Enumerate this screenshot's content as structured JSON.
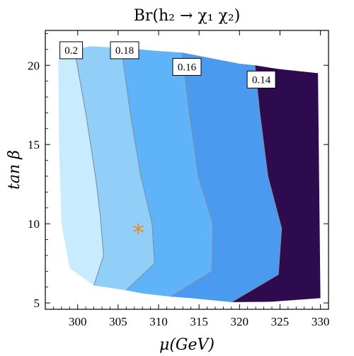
{
  "chart_data": {
    "type": "contour",
    "title": "Br(h₂ → χ₁ χ₂)",
    "xlabel": "μ(GeV)",
    "ylabel": "tan β",
    "xlim": [
      296,
      331
    ],
    "ylim": [
      4.6,
      22.2
    ],
    "x_ticks": [
      300,
      305,
      310,
      315,
      320,
      325,
      330
    ],
    "y_ticks": [
      5,
      10,
      15,
      20
    ],
    "grid": false,
    "contour_levels": [
      0.2,
      0.18,
      0.16,
      0.14
    ],
    "level_labels": [
      "0.2",
      "0.18",
      "0.16",
      "0.14"
    ],
    "region_colors": [
      "#c8ecfd",
      "#91cff9",
      "#5fb3f9",
      "#4a9af0",
      "#2e0b4f"
    ],
    "contour_line_color": "#7d8ea6",
    "marker": {
      "symbol": "*",
      "x": 307.5,
      "y": 9.8,
      "color": "#f08a1e"
    }
  }
}
